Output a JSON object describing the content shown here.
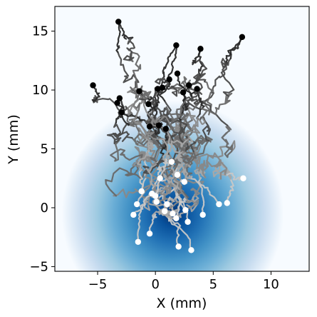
{
  "chart_data": {
    "type": "scatter",
    "title": "",
    "xlabel": "X (mm)",
    "ylabel": "Y (mm)",
    "xlim": [
      -8.7,
      13.3
    ],
    "ylim": [
      -5.4,
      17.1
    ],
    "xticks": [
      -5,
      0,
      5,
      10
    ],
    "yticks": [
      -5,
      0,
      5,
      10,
      15
    ],
    "grid": false,
    "legend": "none",
    "background_heatmap": {
      "colormap": "Blues",
      "center": [
        1.5,
        -0.5
      ],
      "sigma": 4.0,
      "peak_color": "#08306b",
      "low_color": "#f7fbff"
    },
    "track_colors": {
      "end": "#000000",
      "start": "#ffffff",
      "marker_start_dark": "#000000",
      "marker_end_light": "#ffffff"
    },
    "end_points": [
      [
        -3.2,
        15.8
      ],
      [
        1.8,
        13.8
      ],
      [
        7.5,
        14.5
      ],
      [
        3.9,
        13.5
      ],
      [
        -5.4,
        10.4
      ],
      [
        -3.3,
        8.9
      ],
      [
        -2.9,
        8.1
      ],
      [
        -1.4,
        9.9
      ],
      [
        -0.6,
        8.8
      ],
      [
        0.2,
        10.1
      ],
      [
        0.6,
        10.2
      ],
      [
        1.2,
        10.9
      ],
      [
        1.9,
        11.4
      ],
      [
        2.4,
        9.8
      ],
      [
        3.6,
        10.1
      ],
      [
        -0.5,
        6.9
      ],
      [
        0.3,
        7.0
      ],
      [
        0.9,
        6.7
      ],
      [
        -3.1,
        9.3
      ],
      [
        2.9,
        10.4
      ]
    ],
    "start_points": [
      [
        -1.5,
        -2.9
      ],
      [
        -1.2,
        1.4
      ],
      [
        -0.3,
        1.2
      ],
      [
        0.1,
        0.5
      ],
      [
        1.0,
        0.3
      ],
      [
        0.4,
        2.5
      ],
      [
        1.4,
        3.9
      ],
      [
        1.9,
        2.8
      ],
      [
        2.5,
        2.2
      ],
      [
        0.8,
        -0.3
      ],
      [
        1.5,
        -0.5
      ],
      [
        1.8,
        -0.9
      ],
      [
        2.6,
        -0.2
      ],
      [
        4.1,
        -0.6
      ],
      [
        6.2,
        0.4
      ],
      [
        7.6,
        2.5
      ],
      [
        -0.5,
        -2.2
      ],
      [
        2.0,
        -3.3
      ],
      [
        3.1,
        -3.6
      ],
      [
        -1.9,
        -0.6
      ],
      [
        5.5,
        0.3
      ],
      [
        2.8,
        -1.2
      ],
      [
        0.0,
        1.0
      ],
      [
        -1.6,
        0.3
      ]
    ]
  }
}
